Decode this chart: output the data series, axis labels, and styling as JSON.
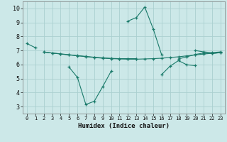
{
  "x": [
    0,
    1,
    2,
    3,
    4,
    5,
    6,
    7,
    8,
    9,
    10,
    11,
    12,
    13,
    14,
    15,
    16,
    17,
    18,
    19,
    20,
    21,
    22,
    23
  ],
  "lines": [
    [
      7.5,
      7.2,
      null,
      null,
      null,
      null,
      null,
      null,
      null,
      null,
      null,
      null,
      9.1,
      9.35,
      10.1,
      8.55,
      6.7,
      null,
      null,
      null,
      7.0,
      6.9,
      6.85,
      6.9
    ],
    [
      null,
      null,
      6.9,
      6.82,
      6.75,
      6.68,
      6.62,
      6.56,
      6.5,
      6.45,
      6.42,
      6.4,
      6.38,
      6.38,
      6.4,
      6.42,
      6.45,
      6.5,
      6.55,
      6.62,
      6.68,
      6.75,
      6.8,
      6.85
    ],
    [
      null,
      null,
      6.88,
      6.82,
      6.76,
      6.7,
      6.64,
      6.58,
      6.52,
      6.48,
      6.44,
      6.42,
      6.42,
      6.42,
      null,
      null,
      null,
      null,
      null,
      null,
      null,
      null,
      null,
      null
    ],
    [
      null,
      null,
      null,
      null,
      null,
      null,
      null,
      null,
      null,
      null,
      null,
      null,
      null,
      null,
      null,
      null,
      null,
      null,
      6.4,
      6.55,
      6.72,
      6.82,
      6.78,
      6.85
    ],
    [
      null,
      null,
      null,
      null,
      null,
      5.82,
      5.08,
      3.15,
      3.38,
      4.42,
      5.52,
      null,
      null,
      null,
      null,
      null,
      null,
      null,
      null,
      null,
      null,
      null,
      null,
      null
    ],
    [
      null,
      null,
      null,
      null,
      null,
      null,
      null,
      null,
      null,
      null,
      null,
      null,
      null,
      null,
      null,
      null,
      5.28,
      5.88,
      6.28,
      5.98,
      5.92,
      null,
      null,
      null
    ]
  ],
  "bg_color": "#cce8e8",
  "grid_color": "#aad0d0",
  "line_color": "#1a7a6a",
  "xlabel": "Humidex (Indice chaleur)",
  "xlim": [
    -0.5,
    23.5
  ],
  "ylim": [
    2.5,
    10.5
  ],
  "yticks": [
    3,
    4,
    5,
    6,
    7,
    8,
    9,
    10
  ],
  "xticks": [
    0,
    1,
    2,
    3,
    4,
    5,
    6,
    7,
    8,
    9,
    10,
    11,
    12,
    13,
    14,
    15,
    16,
    17,
    18,
    19,
    20,
    21,
    22,
    23
  ],
  "lw": 0.8,
  "marker_size": 3.5
}
